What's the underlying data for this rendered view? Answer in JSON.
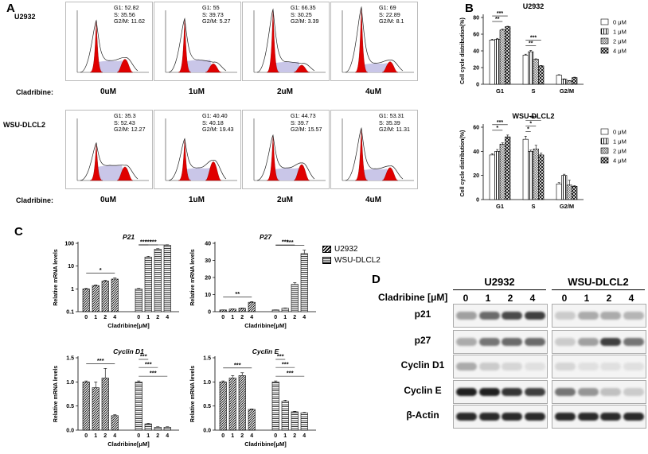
{
  "panelA": {
    "letter": "A",
    "cladribine_label": "Cladribine:",
    "doses": [
      "0uM",
      "1uM",
      "2uM",
      "4uM"
    ],
    "rows": [
      {
        "cell_line": "U2932",
        "stats": [
          [
            "G1: 52.82",
            "S: 35.56",
            "G2/M: 11.62"
          ],
          [
            "G1: 55",
            "S: 39.73",
            "G2/M: 5.27"
          ],
          [
            "G1: 66.35",
            "S: 30.25",
            "G2/M: 3.39"
          ],
          [
            "G1: 69",
            "S: 22.89",
            "G2/M: 8.1"
          ]
        ]
      },
      {
        "cell_line": "WSU-DLCL2",
        "stats": [
          [
            "G1: 35.3",
            "S: 52.43",
            "G2/M: 12.27"
          ],
          [
            "G1: 40.40",
            "S: 40.18",
            "G2/M: 19.43"
          ],
          [
            "G1: 44.73",
            "S: 39.7",
            "G2/M: 15.57"
          ],
          [
            "G1: 53.31",
            "S: 35.39",
            "G2/M: 11.31"
          ]
        ]
      }
    ]
  },
  "panelB": {
    "letter": "B"
  },
  "panelC": {
    "letter": "C"
  },
  "panelD": {
    "letter": "D",
    "cladribine_label": "Cladribine [μM]",
    "groups": [
      "U2932",
      "WSU-DLCL2"
    ],
    "lanes": [
      "0",
      "1",
      "2",
      "4"
    ],
    "proteins": [
      "p21",
      "p27",
      "Cyclin D1",
      "Cyclin E",
      "β-Actin"
    ],
    "band_intensity": {
      "U2932": [
        [
          0.35,
          0.6,
          0.75,
          0.8
        ],
        [
          0.3,
          0.55,
          0.6,
          0.6
        ],
        [
          0.3,
          0.15,
          0.1,
          0.05
        ],
        [
          0.95,
          0.95,
          0.85,
          0.8
        ],
        [
          0.9,
          0.9,
          0.9,
          0.9
        ]
      ],
      "WSU-DLCL2": [
        [
          0.15,
          0.3,
          0.3,
          0.25
        ],
        [
          0.15,
          0.35,
          0.8,
          0.55
        ],
        [
          0.1,
          0.05,
          0.05,
          0.05
        ],
        [
          0.55,
          0.4,
          0.2,
          0.15
        ],
        [
          0.9,
          0.9,
          0.9,
          0.9
        ]
      ]
    }
  },
  "chart_data": [
    {
      "id": "B-U2932",
      "type": "bar",
      "title": "U2932",
      "ylabel": "Cell cycle distribution(%)",
      "ylim": [
        0,
        80
      ],
      "yticks": [
        0,
        20,
        40,
        60,
        80
      ],
      "categories": [
        "G1",
        "S",
        "G2/M"
      ],
      "series": [
        {
          "name": "0 μM",
          "values": [
            53,
            35,
            11
          ],
          "errors": [
            1,
            1,
            0.5
          ]
        },
        {
          "name": "1 μM",
          "values": [
            54,
            39,
            6
          ],
          "errors": [
            1,
            1.5,
            0.5
          ]
        },
        {
          "name": "2 μM",
          "values": [
            65,
            30,
            4
          ],
          "errors": [
            1,
            0.5,
            0.5
          ]
        },
        {
          "name": "4 μM",
          "values": [
            69,
            22,
            8
          ],
          "errors": [
            0.5,
            0.5,
            0.5
          ]
        }
      ],
      "sig": [
        {
          "cat": 0,
          "from": 0,
          "to": 2,
          "label": "**"
        },
        {
          "cat": 0,
          "from": 0,
          "to": 3,
          "label": "***"
        },
        {
          "cat": 1,
          "from": 0,
          "to": 2,
          "label": "**"
        },
        {
          "cat": 1,
          "from": 0,
          "to": 3,
          "label": "***"
        }
      ]
    },
    {
      "id": "B-WSU",
      "type": "bar",
      "title": "WSU-DLCL2",
      "ylabel": "Cell cycle distribution(%)",
      "ylim": [
        0,
        60
      ],
      "yticks": [
        0,
        20,
        40,
        60
      ],
      "categories": [
        "G1",
        "S",
        "G2/M"
      ],
      "series": [
        {
          "name": "0 μM",
          "values": [
            37,
            50,
            13
          ],
          "errors": [
            1,
            2.5,
            1
          ]
        },
        {
          "name": "1 μM",
          "values": [
            40,
            40,
            20
          ],
          "errors": [
            1.5,
            1,
            1
          ]
        },
        {
          "name": "2 μM",
          "values": [
            46,
            42,
            12
          ],
          "errors": [
            1,
            3,
            4
          ]
        },
        {
          "name": "4 μM",
          "values": [
            52,
            37,
            11
          ],
          "errors": [
            1.5,
            1.5,
            0.5
          ]
        }
      ],
      "sig": [
        {
          "cat": 0,
          "from": 0,
          "to": 2,
          "label": "*"
        },
        {
          "cat": 0,
          "from": 0,
          "to": 3,
          "label": "***"
        },
        {
          "cat": 1,
          "from": 0,
          "to": 1,
          "label": "*"
        },
        {
          "cat": 1,
          "from": 0,
          "to": 2,
          "label": "*"
        },
        {
          "cat": 1,
          "from": 0,
          "to": 3,
          "label": "***"
        }
      ]
    },
    {
      "id": "C-P21",
      "type": "bar",
      "title": "P21",
      "xlabel": "Cladribine[μM]",
      "ylabel": "Relative mRNA levels",
      "yscale": "log",
      "ylim": [
        0.1,
        100
      ],
      "ytick_labels": [
        "100",
        "10",
        "1",
        "0.1"
      ],
      "categories": [
        "0",
        "1",
        "2",
        "4"
      ],
      "series": [
        {
          "name": "U2932",
          "values": [
            1,
            1.4,
            2.2,
            2.7
          ],
          "errors": [
            0.05,
            0.1,
            0.15,
            0.3
          ]
        },
        {
          "name": "WSU-DLCL2",
          "values": [
            1,
            25,
            55,
            82
          ],
          "errors": [
            0.05,
            2,
            3,
            4
          ]
        }
      ],
      "sig": [
        {
          "series": 0,
          "from": 0,
          "to": 3,
          "label": "*"
        },
        {
          "series": 1,
          "from": 0,
          "to": 1,
          "label": "***"
        },
        {
          "series": 1,
          "from": 0,
          "to": 2,
          "label": "***"
        },
        {
          "series": 1,
          "from": 0,
          "to": 3,
          "label": "***"
        }
      ]
    },
    {
      "id": "C-P27",
      "type": "bar",
      "title": "P27",
      "xlabel": "Cladribine[μM]",
      "ylabel": "Relative mRNA levels",
      "ylim": [
        0,
        40
      ],
      "yticks": [
        0,
        10,
        20,
        30,
        40
      ],
      "categories": [
        "0",
        "1",
        "2",
        "4"
      ],
      "series": [
        {
          "name": "U2932",
          "values": [
            1,
            1.5,
            2,
            5.5
          ],
          "errors": [
            0.05,
            0.1,
            0.15,
            0.4
          ]
        },
        {
          "name": "WSU-DLCL2",
          "values": [
            1,
            2,
            16,
            34
          ],
          "errors": [
            0.05,
            0.2,
            1,
            2
          ]
        }
      ],
      "sig": [
        {
          "series": 0,
          "from": 0,
          "to": 3,
          "label": "**"
        },
        {
          "series": 1,
          "from": 0,
          "to": 2,
          "label": "***"
        },
        {
          "series": 1,
          "from": 0,
          "to": 3,
          "label": "***"
        }
      ]
    },
    {
      "id": "C-CyclinD1",
      "type": "bar",
      "title": "Cyclin D1",
      "xlabel": "Cladribine[μM]",
      "ylabel": "Relative mRNA levels",
      "ylim": [
        0,
        1.5
      ],
      "yticks": [
        0,
        0.5,
        1.0,
        1.5
      ],
      "categories": [
        "0",
        "1",
        "2",
        "4"
      ],
      "series": [
        {
          "name": "U2932",
          "values": [
            1,
            0.88,
            1.08,
            0.3
          ],
          "errors": [
            0.02,
            0.12,
            0.2,
            0.02
          ]
        },
        {
          "name": "WSU-DLCL2",
          "values": [
            1,
            0.13,
            0.06,
            0.06
          ],
          "errors": [
            0.02,
            0.01,
            0.01,
            0.01
          ]
        }
      ],
      "sig": [
        {
          "series": 0,
          "from": 0,
          "to": 3,
          "label": "***"
        },
        {
          "series": 1,
          "from": 0,
          "to": 1,
          "label": "***"
        },
        {
          "series": 1,
          "from": 0,
          "to": 2,
          "label": "***"
        },
        {
          "series": 1,
          "from": 0,
          "to": 3,
          "label": "***"
        }
      ]
    },
    {
      "id": "C-CyclinE",
      "type": "bar",
      "title": "Cyclin E",
      "xlabel": "Cladribine[μM]",
      "ylabel": "Relative mRNA levels",
      "ylim": [
        0,
        1.5
      ],
      "yticks": [
        0,
        0.5,
        1.0,
        1.5
      ],
      "categories": [
        "0",
        "1",
        "2",
        "4"
      ],
      "series": [
        {
          "name": "U2932",
          "values": [
            1,
            1.08,
            1.13,
            0.43
          ],
          "errors": [
            0.02,
            0.05,
            0.06,
            0.01
          ]
        },
        {
          "name": "WSU-DLCL2",
          "values": [
            1,
            0.6,
            0.38,
            0.36
          ],
          "errors": [
            0.02,
            0.02,
            0.01,
            0.01
          ]
        }
      ],
      "sig": [
        {
          "series": 0,
          "from": 0,
          "to": 3,
          "label": "***"
        },
        {
          "series": 1,
          "from": 0,
          "to": 1,
          "label": "***"
        },
        {
          "series": 1,
          "from": 0,
          "to": 2,
          "label": "***"
        },
        {
          "series": 1,
          "from": 0,
          "to": 3,
          "label": "***"
        }
      ]
    }
  ],
  "legends": {
    "B": [
      "0 μM",
      "1 μM",
      "2 μM",
      "4 μM"
    ],
    "C": [
      "U2932",
      "WSU-DLCL2"
    ]
  }
}
